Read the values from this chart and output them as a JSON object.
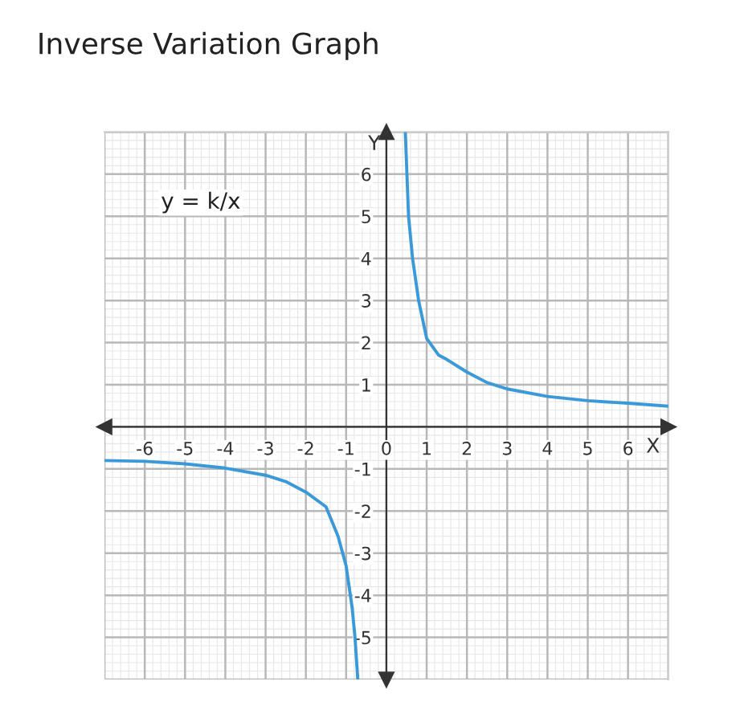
{
  "chart_data": {
    "type": "line",
    "title": "Inverse Variation Graph",
    "xlabel": "X",
    "ylabel": "Y",
    "xlim": [
      -7,
      7
    ],
    "ylim": [
      -6,
      7
    ],
    "xticks": [
      -6,
      -5,
      -4,
      -3,
      -2,
      -1,
      0,
      1,
      2,
      3,
      4,
      5,
      6
    ],
    "yticks": [
      -5,
      -4,
      -3,
      -2,
      -1,
      1,
      2,
      3,
      4,
      5,
      6
    ],
    "grid": true,
    "marker": "none",
    "line_style": "solid",
    "annotations": [
      {
        "text": "y = k/x"
      }
    ],
    "series": [
      {
        "color": "#3a9ad9",
        "x": [
          0.47,
          0.55,
          0.65,
          0.8,
          1.0,
          1.3,
          1.5,
          2,
          2.5,
          3,
          4,
          5,
          6,
          7
        ],
        "values": [
          7,
          5.0,
          4.0,
          3.0,
          2.1,
          1.7,
          1.6,
          1.3,
          1.05,
          0.9,
          0.72,
          0.62,
          0.56,
          0.49
        ]
      },
      {
        "color": "#3a9ad9",
        "x": [
          -7,
          -6,
          -5,
          -4,
          -3,
          -2.5,
          -2,
          -1.5,
          -1.2,
          -1,
          -0.85,
          -0.78,
          -0.71
        ],
        "values": [
          -0.8,
          -0.82,
          -0.88,
          -0.98,
          -1.15,
          -1.3,
          -1.55,
          -1.9,
          -2.6,
          -3.3,
          -4.3,
          -5,
          -6
        ]
      }
    ]
  }
}
